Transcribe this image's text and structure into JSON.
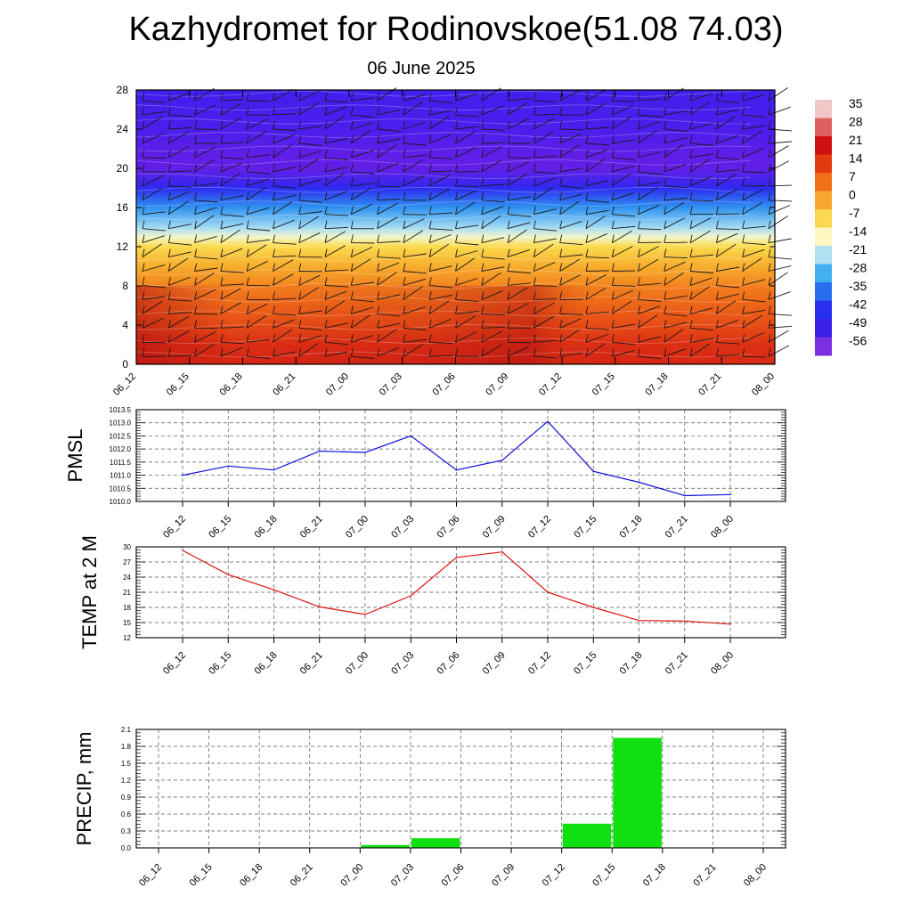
{
  "header": {
    "title": "Kazhydromet for Rodinovskoe(51.08 74.03)",
    "subtitle": "06 June 2025"
  },
  "chart_data": [
    {
      "type": "heatmap",
      "x_tick_labels": [
        "06_12",
        "06_15",
        "06_18",
        "06_21",
        "07_00",
        "07_03",
        "07_06",
        "07_09",
        "07_12",
        "07_15",
        "07_18",
        "07_21",
        "08_00"
      ],
      "y_ticks": [
        0,
        4,
        8,
        12,
        16,
        20,
        24,
        28
      ],
      "ylim": [
        0,
        28
      ],
      "colorbar_labels": [
        "35",
        "28",
        "21",
        "14",
        "7",
        "0",
        "-7",
        "-14",
        "-21",
        "-28",
        "-35",
        "-42",
        "-49",
        "-56"
      ],
      "colorbar_colors": [
        "#f2c6c6",
        "#e06060",
        "#d01010",
        "#e43a10",
        "#f07018",
        "#f8a830",
        "#fcd850",
        "#fdf7c0",
        "#b0e0f2",
        "#40b0f0",
        "#2a6ef0",
        "#2830f0",
        "#3a20e8",
        "#7a30e0"
      ],
      "wind_barbs": true,
      "vertical_profile": [
        {
          "level": 0,
          "value": 24
        },
        {
          "level": 2,
          "value": 22
        },
        {
          "level": 4,
          "value": 18
        },
        {
          "level": 6,
          "value": 15
        },
        {
          "level": 8,
          "value": 11
        },
        {
          "level": 10,
          "value": 5
        },
        {
          "level": 12,
          "value": -3
        },
        {
          "level": 13,
          "value": -12
        },
        {
          "level": 14,
          "value": -18
        },
        {
          "level": 16,
          "value": -30
        },
        {
          "level": 18,
          "value": -47
        },
        {
          "level": 20,
          "value": -56
        },
        {
          "level": 22,
          "value": -55
        },
        {
          "level": 24,
          "value": -53
        },
        {
          "level": 28,
          "value": -52
        }
      ]
    },
    {
      "type": "line",
      "ylabel": "PMSL",
      "categories": [
        "06_12",
        "06_15",
        "06_18",
        "06_21",
        "07_00",
        "07_03",
        "07_06",
        "07_09",
        "07_12",
        "07_15",
        "07_18",
        "07_21",
        "08_00"
      ],
      "values": [
        1011.0,
        1011.35,
        1011.2,
        1011.92,
        1011.87,
        1012.5,
        1011.2,
        1011.57,
        1013.05,
        1011.15,
        1010.73,
        1010.22,
        1010.26
      ],
      "ylim": [
        1010.0,
        1013.5
      ],
      "y_ticks": [
        "1010.0",
        "1010.5",
        "1011.0",
        "1011.5",
        "1012.0",
        "1012.5",
        "1013.0",
        "1013.5"
      ],
      "color": "#1010e0",
      "grid": true
    },
    {
      "type": "line",
      "ylabel": "TEMP at 2 M",
      "categories": [
        "06_12",
        "06_15",
        "06_18",
        "06_21",
        "07_00",
        "07_03",
        "07_06",
        "07_09",
        "07_12",
        "07_15",
        "07_18",
        "07_21",
        "08_00"
      ],
      "values": [
        29.3,
        24.5,
        21.5,
        18.1,
        16.6,
        20.3,
        27.9,
        29.0,
        21.0,
        18.0,
        15.4,
        15.3,
        14.7
      ],
      "ylim": [
        12,
        30
      ],
      "y_ticks": [
        "12",
        "15",
        "18",
        "21",
        "24",
        "27",
        "30"
      ],
      "color": "#e01010",
      "grid": true
    },
    {
      "type": "bar",
      "ylabel": "PRECIP, mm",
      "categories": [
        "06_12",
        "06_15",
        "06_18",
        "06_21",
        "07_00",
        "07_03",
        "07_06",
        "07_09",
        "07_12",
        "07_15",
        "07_18",
        "07_21",
        "08_00"
      ],
      "values": [
        0,
        0,
        0,
        0,
        0,
        0.05,
        0.17,
        0,
        0,
        0.43,
        1.95,
        0,
        0
      ],
      "ylim": [
        0,
        2.1
      ],
      "y_ticks": [
        "0.0",
        "0.3",
        "0.6",
        "0.9",
        "1.2",
        "1.5",
        "1.8",
        "2.1"
      ],
      "color": "#10e010",
      "grid": true
    }
  ]
}
